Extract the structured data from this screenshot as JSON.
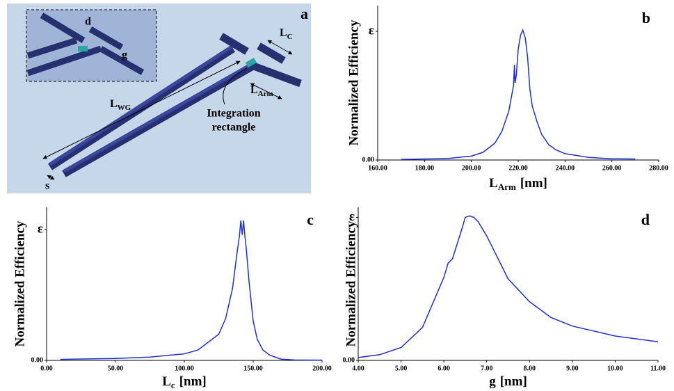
{
  "diagram": {
    "panel": "a",
    "labels": {
      "d": "d",
      "g": "g",
      "lc": {
        "main": "L",
        "sub": "C"
      },
      "larm": {
        "main": "L",
        "sub": "Arm"
      },
      "lwg": {
        "main": "L",
        "sub": "WG"
      },
      "s": "s",
      "integration": [
        "Integration",
        "rectangle"
      ]
    }
  },
  "chart_data": [
    {
      "type": "line",
      "panel": "b",
      "ylabel": "Normalized Efficiency",
      "xlabel": {
        "main": "L",
        "sub": "Arm",
        "unit": "[nm]"
      },
      "color": "#1f2fd0",
      "x": [
        170,
        190,
        200,
        205,
        210,
        213,
        216,
        218,
        218.4,
        218.7,
        219.2,
        220,
        221,
        222,
        223,
        224,
        225,
        226,
        228,
        230,
        233,
        236,
        240,
        250,
        260,
        270
      ],
      "values": [
        0.005,
        0.012,
        0.03,
        0.06,
        0.13,
        0.22,
        0.38,
        0.58,
        0.74,
        0.6,
        0.66,
        0.86,
        0.97,
        1.01,
        0.95,
        0.8,
        0.55,
        0.42,
        0.3,
        0.2,
        0.12,
        0.08,
        0.05,
        0.02,
        0.01,
        0.008
      ],
      "xlim": [
        160,
        280
      ],
      "xticks": [
        {
          "value": 160,
          "label": "160.00"
        },
        {
          "value": 180,
          "label": "180.00"
        },
        {
          "value": 200,
          "label": "200.00"
        },
        {
          "value": 220,
          "label": "220.00"
        },
        {
          "value": 240,
          "label": "240.00"
        },
        {
          "value": 260,
          "label": "260.00"
        },
        {
          "value": 280,
          "label": "280.00"
        }
      ],
      "ylim": [
        0,
        1.2
      ],
      "yticks": [
        {
          "value": 0,
          "label": "0.00"
        },
        {
          "value": 1,
          "label": "ε"
        }
      ]
    },
    {
      "type": "line",
      "panel": "c",
      "ylabel": "Normalized Efficiency",
      "xlabel": {
        "main": "L",
        "sub": "c",
        "unit": "[nm]"
      },
      "color": "#1f2fd0",
      "x": [
        10,
        50,
        75,
        100,
        110,
        120,
        125,
        130,
        135,
        138,
        140,
        141,
        142,
        143,
        144,
        145,
        147,
        150,
        153,
        157,
        162,
        170,
        180,
        200
      ],
      "values": [
        0.008,
        0.015,
        0.025,
        0.05,
        0.08,
        0.16,
        0.2,
        0.32,
        0.55,
        0.8,
        0.95,
        1.07,
        0.96,
        1.07,
        0.95,
        0.85,
        0.6,
        0.3,
        0.16,
        0.08,
        0.04,
        0.01,
        0.003,
        0.002
      ],
      "xlim": [
        0,
        200
      ],
      "xticks": [
        {
          "value": 0,
          "label": "0.00"
        },
        {
          "value": 50,
          "label": "50.00"
        },
        {
          "value": 100,
          "label": "100.00"
        },
        {
          "value": 150,
          "label": "150.00"
        },
        {
          "value": 200,
          "label": "200.00"
        }
      ],
      "ylim": [
        0,
        1.17
      ],
      "yticks": [
        {
          "value": 0,
          "label": "0.00"
        },
        {
          "value": 1,
          "label": "ε"
        }
      ]
    },
    {
      "type": "line",
      "panel": "d",
      "ylabel": "Normalized Efficiency",
      "xlabel": {
        "main": "g",
        "unit": "[nm]"
      },
      "color": "#1f2fd0",
      "x": [
        4.0,
        4.5,
        5.0,
        5.5,
        6.0,
        6.1,
        6.2,
        6.4,
        6.5,
        6.6,
        6.7,
        6.8,
        7.0,
        7.5,
        8.0,
        8.5,
        9.0,
        10.0,
        11.0
      ],
      "values": [
        0.02,
        0.04,
        0.09,
        0.23,
        0.58,
        0.68,
        0.71,
        0.9,
        1.0,
        1.01,
        1.0,
        0.97,
        0.87,
        0.57,
        0.41,
        0.3,
        0.24,
        0.17,
        0.13
      ],
      "xlim": [
        4,
        11
      ],
      "xticks": [
        {
          "value": 4,
          "label": "4.00"
        },
        {
          "value": 5,
          "label": "5.00"
        },
        {
          "value": 6,
          "label": "6.00"
        },
        {
          "value": 7,
          "label": "7.00"
        },
        {
          "value": 8,
          "label": "8.00"
        },
        {
          "value": 9,
          "label": "9.00"
        },
        {
          "value": 10,
          "label": "10.00"
        },
        {
          "value": 11,
          "label": "11.00"
        }
      ],
      "ylim": [
        0,
        1.07
      ],
      "yticks": [
        {
          "value": 0,
          "label": "0.00"
        },
        {
          "value": 1,
          "label": "ε"
        }
      ]
    }
  ]
}
